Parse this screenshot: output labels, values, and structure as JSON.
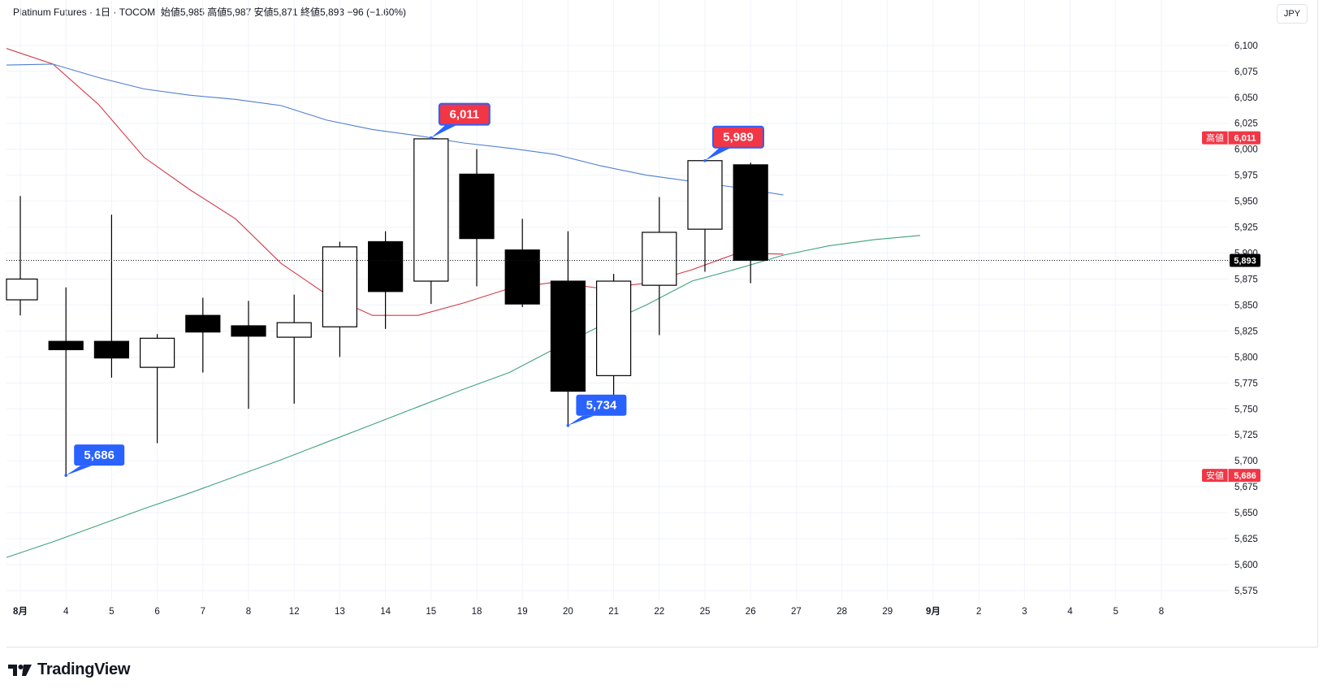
{
  "header": {
    "symbol": "Platinum Futures",
    "interval": "1日",
    "exchange": "TOCOM",
    "ohlc_text": "始値5,985  高値5,987  安値5,871  終値5,893  −96 (−1.60%)"
  },
  "currency": "JPY",
  "branding": "TradingView",
  "colors": {
    "up_body": "#ffffff",
    "down_body": "#000000",
    "ma_red": "#d13b47",
    "ma_blue": "#4f7fd0",
    "ma_green": "#3fa37c",
    "high_tag": "#f23645",
    "low_tag": "#2962ff"
  },
  "chart_data": {
    "type": "candlestick",
    "ylim": [
      5560,
      6120
    ],
    "yticks": [
      5575,
      5600,
      5625,
      5650,
      5675,
      5700,
      5725,
      5750,
      5775,
      5800,
      5825,
      5850,
      5875,
      5900,
      5925,
      5950,
      5975,
      6000,
      6025,
      6050,
      6075,
      6100
    ],
    "ytick_labels": [
      "5,575",
      "5,600",
      "5,625",
      "5,650",
      "5,675",
      "5,700",
      "5,725",
      "5,750",
      "5,775",
      "5,800",
      "5,825",
      "5,850",
      "5,875",
      "5,900",
      "5,925",
      "5,950",
      "5,975",
      "6,000",
      "6,025",
      "6,050",
      "6,075",
      "6,100"
    ],
    "x_labels": [
      "8月",
      "4",
      "5",
      "6",
      "7",
      "8",
      "12",
      "13",
      "14",
      "15",
      "18",
      "19",
      "20",
      "21",
      "22",
      "25",
      "26",
      "27",
      "28",
      "29",
      "9月",
      "2",
      "3",
      "4",
      "5",
      "8"
    ],
    "bold_x_labels": [
      "8月",
      "9月"
    ],
    "candles": [
      {
        "date": "8月",
        "open": 5855,
        "high": 5955,
        "low": 5840,
        "close": 5875
      },
      {
        "date": "4",
        "open": 5815,
        "high": 5867,
        "low": 5686,
        "close": 5807
      },
      {
        "date": "5",
        "open": 5815,
        "high": 5937,
        "low": 5780,
        "close": 5799
      },
      {
        "date": "6",
        "open": 5790,
        "high": 5822,
        "low": 5717,
        "close": 5818
      },
      {
        "date": "7",
        "open": 5840,
        "high": 5857,
        "low": 5785,
        "close": 5824
      },
      {
        "date": "8",
        "open": 5830,
        "high": 5854,
        "low": 5750,
        "close": 5820
      },
      {
        "date": "12",
        "open": 5819,
        "high": 5860,
        "low": 5755,
        "close": 5833
      },
      {
        "date": "13",
        "open": 5829,
        "high": 5911,
        "low": 5800,
        "close": 5906
      },
      {
        "date": "14",
        "open": 5911,
        "high": 5921,
        "low": 5827,
        "close": 5863
      },
      {
        "date": "15",
        "open": 5873,
        "high": 6011,
        "low": 5851,
        "close": 6010
      },
      {
        "date": "18",
        "open": 5976,
        "high": 6000,
        "low": 5868,
        "close": 5914
      },
      {
        "date": "19",
        "open": 5903,
        "high": 5933,
        "low": 5848,
        "close": 5851
      },
      {
        "date": "20",
        "open": 5873,
        "high": 5921,
        "low": 5734,
        "close": 5767
      },
      {
        "date": "21",
        "open": 5782,
        "high": 5880,
        "low": 5762,
        "close": 5873
      },
      {
        "date": "22",
        "open": 5869,
        "high": 5954,
        "low": 5821,
        "close": 5920
      },
      {
        "date": "25",
        "open": 5923,
        "high": 5989,
        "low": 5882,
        "close": 5989
      },
      {
        "date": "26",
        "open": 5985,
        "high": 5987,
        "low": 5871,
        "close": 5893
      }
    ],
    "series": [
      {
        "color": "red",
        "values": [
          6097,
          6082,
          6043,
          5992,
          5961,
          5933,
          5890,
          5860,
          5840,
          5840,
          5852,
          5866,
          5872,
          5866,
          5871,
          5884,
          5900,
          5899
        ]
      },
      {
        "color": "blue",
        "values": [
          6081,
          6082,
          6069,
          6058,
          6052,
          6048,
          6042,
          6028,
          6019,
          6013,
          6006,
          6001,
          5995,
          5984,
          5975,
          5969,
          5963,
          5956
        ]
      },
      {
        "color": "green",
        "values": [
          5607,
          5622,
          5638,
          5654,
          5669,
          5685,
          5701,
          5718,
          5735,
          5752,
          5769,
          5785,
          5808,
          5830,
          5850,
          5873,
          5885,
          5898,
          5907,
          5913,
          5917
        ]
      }
    ],
    "price_line": 5893,
    "current_price_label": "5,893",
    "callouts": [
      {
        "label": "6,011",
        "kind": "high",
        "candle": "15"
      },
      {
        "label": "5,989",
        "kind": "high",
        "candle": "25"
      },
      {
        "label": "5,686",
        "kind": "low",
        "candle": "4"
      },
      {
        "label": "5,734",
        "kind": "low",
        "candle": "20"
      }
    ],
    "right_tags": [
      {
        "name": "高値",
        "value": "6,011",
        "price": 6011
      },
      {
        "name": "安値",
        "value": "5,686",
        "price": 5686
      }
    ]
  }
}
